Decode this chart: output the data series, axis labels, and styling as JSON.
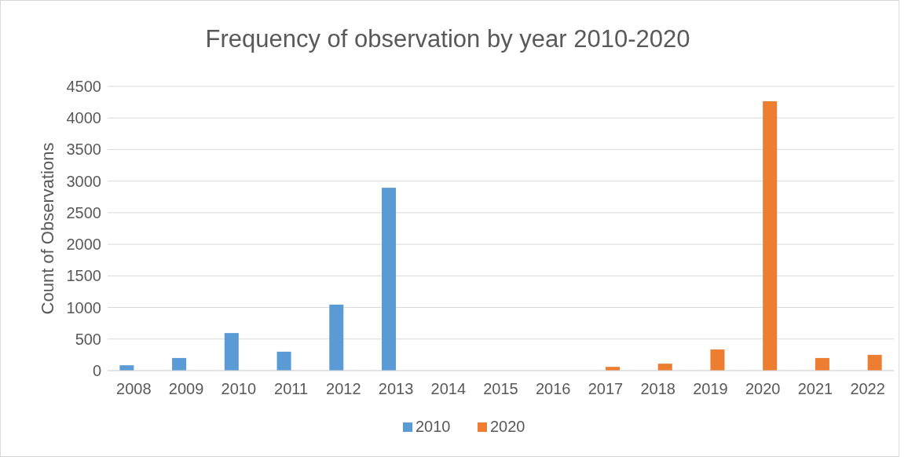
{
  "chart_data": {
    "type": "bar",
    "title": "Frequency of observation by year 2010-2020",
    "ylabel": "Count of Observations",
    "categories": [
      "2008",
      "2009",
      "2010",
      "2011",
      "2012",
      "2013",
      "2014",
      "2015",
      "2016",
      "2017",
      "2018",
      "2019",
      "2020",
      "2021",
      "2022"
    ],
    "series": [
      {
        "name": "2010",
        "color": "#5b9bd5",
        "values": [
          85,
          200,
          595,
          300,
          1045,
          2895,
          null,
          null,
          null,
          null,
          null,
          null,
          null,
          null,
          null
        ]
      },
      {
        "name": "2020",
        "color": "#ed7d31",
        "values": [
          null,
          null,
          null,
          null,
          null,
          null,
          null,
          null,
          null,
          60,
          110,
          335,
          4265,
          200,
          250
        ]
      }
    ],
    "ylim": [
      0,
      4500
    ],
    "yticks": [
      0,
      500,
      1000,
      1500,
      2000,
      2500,
      3000,
      3500,
      4000,
      4500
    ],
    "grid": "y",
    "legend": "bottom"
  }
}
